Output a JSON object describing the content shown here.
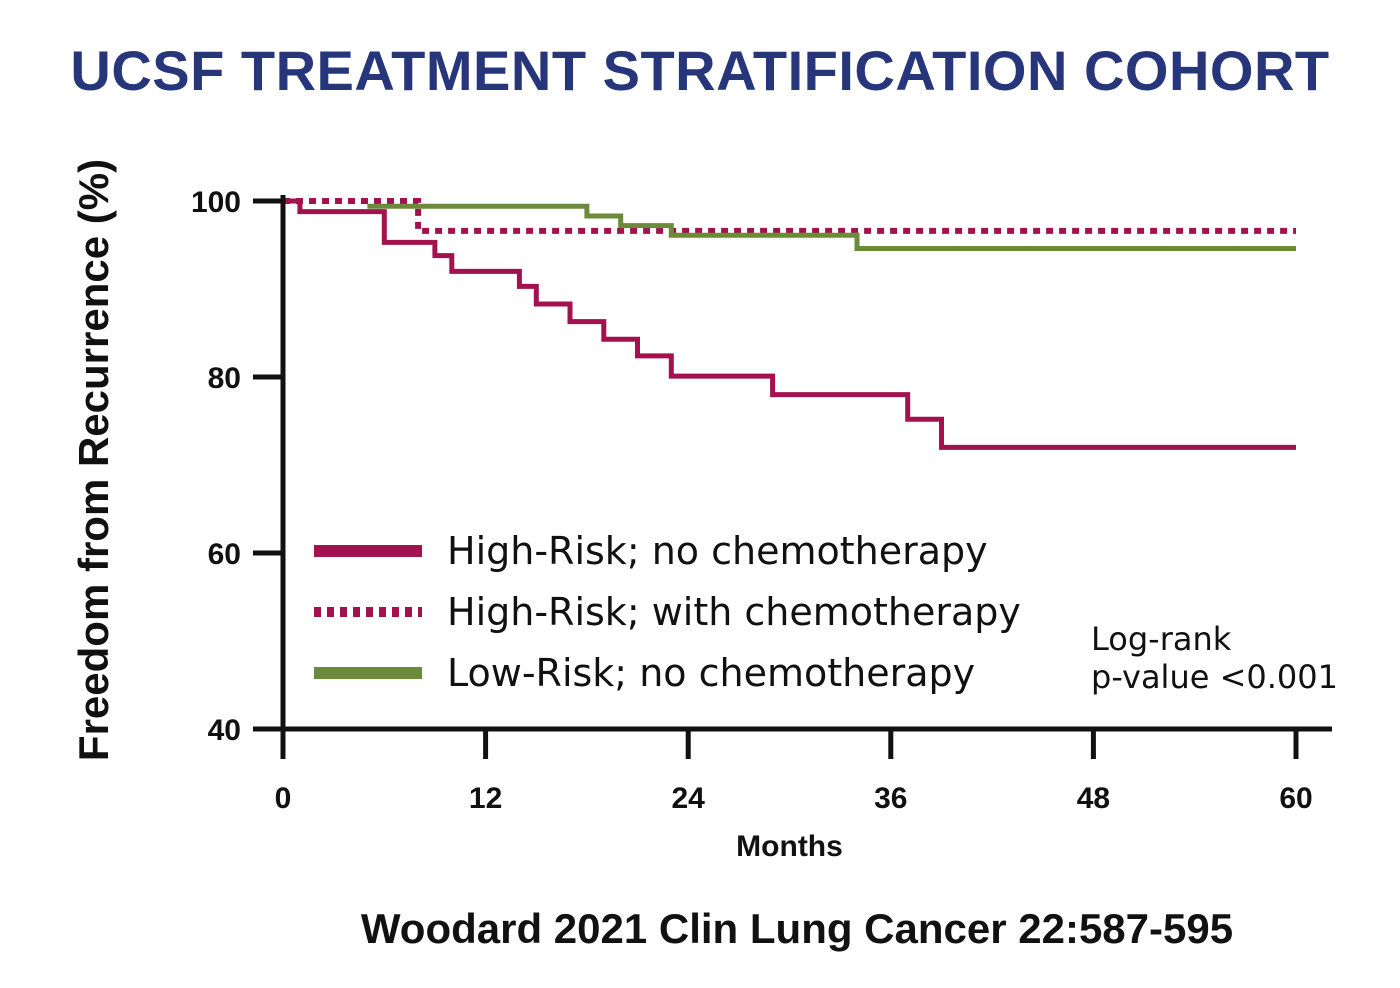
{
  "chart_data": {
    "type": "line",
    "title": "UCSF TREATMENT STRATIFICATION COHORT",
    "xlabel": "Months",
    "ylabel": "Freedom from Recurrence (%)",
    "xlim": [
      0,
      60
    ],
    "ylim": [
      40,
      100
    ],
    "x_ticks": [
      0,
      12,
      24,
      36,
      48,
      60
    ],
    "y_ticks": [
      40,
      60,
      80,
      100
    ],
    "grid": false,
    "legend_position": "lower-left",
    "step": true,
    "series": [
      {
        "name": "High-Risk; no chemotherapy",
        "color": "#a3124f",
        "style": "solid",
        "points": [
          [
            0,
            100
          ],
          [
            1,
            100
          ],
          [
            1,
            98.8
          ],
          [
            6,
            98.8
          ],
          [
            6,
            95.3
          ],
          [
            9,
            95.3
          ],
          [
            9,
            93.8
          ],
          [
            10,
            93.8
          ],
          [
            10,
            92
          ],
          [
            14,
            92
          ],
          [
            14,
            90.3
          ],
          [
            15,
            90.3
          ],
          [
            15,
            88.3
          ],
          [
            17,
            88.3
          ],
          [
            17,
            86.3
          ],
          [
            19,
            86.3
          ],
          [
            19,
            84.3
          ],
          [
            21,
            84.3
          ],
          [
            21,
            82.4
          ],
          [
            23,
            82.4
          ],
          [
            23,
            80.1
          ],
          [
            29,
            80.1
          ],
          [
            29,
            78
          ],
          [
            37,
            78
          ],
          [
            37,
            75.2
          ],
          [
            39,
            75.2
          ],
          [
            39,
            72
          ],
          [
            60,
            72
          ]
        ]
      },
      {
        "name": "High-Risk; with chemotherapy",
        "color": "#a3124f",
        "style": "dotted",
        "points": [
          [
            0,
            100
          ],
          [
            8,
            100
          ],
          [
            8,
            96.6
          ],
          [
            60,
            96.6
          ]
        ]
      },
      {
        "name": "Low-Risk; no chemotherapy",
        "color": "#6b8a3a",
        "style": "solid",
        "points": [
          [
            5,
            99.4
          ],
          [
            18,
            99.4
          ],
          [
            18,
            98.3
          ],
          [
            20,
            98.3
          ],
          [
            20,
            97.2
          ],
          [
            23,
            97.2
          ],
          [
            23,
            96.1
          ],
          [
            34,
            96.1
          ],
          [
            34,
            94.6
          ],
          [
            60,
            94.6
          ]
        ]
      }
    ],
    "annotation": [
      "Log-rank",
      "p-value <0.001"
    ]
  },
  "citation": "Woodard 2021 Clin Lung Cancer 22:587-595",
  "colors": {
    "title": "#27357a",
    "high_risk": "#a3124f",
    "low_risk": "#6b8a3a",
    "axis": "#111111"
  }
}
